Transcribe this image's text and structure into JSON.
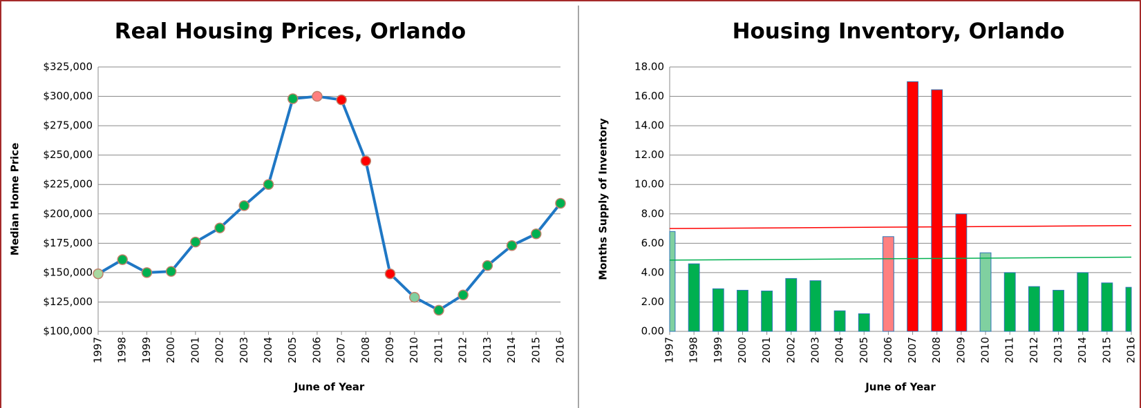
{
  "chart_data": [
    {
      "type": "line",
      "title": "Real Housing Prices, Orlando",
      "x_label": "June of Year",
      "y_label": "Median Home Price",
      "categories": [
        "1997",
        "1998",
        "1999",
        "2000",
        "2001",
        "2002",
        "2003",
        "2004",
        "2005",
        "2006",
        "2007",
        "2008",
        "2009",
        "2010",
        "2011",
        "2012",
        "2013",
        "2014",
        "2015",
        "2016"
      ],
      "values": [
        149000,
        161000,
        150000,
        151000,
        176000,
        188000,
        207000,
        225000,
        298000,
        300000,
        297000,
        245000,
        149000,
        129000,
        118000,
        131000,
        156000,
        173000,
        183000,
        209000
      ],
      "color": "#1f77c4",
      "marker_colors": [
        "#a8d8a0",
        "#00b050",
        "#00b050",
        "#00b050",
        "#00b050",
        "#00b050",
        "#00b050",
        "#00b050",
        "#00b050",
        "#ff8080",
        "#ff0000",
        "#ff0000",
        "#ff0000",
        "#80d0a0",
        "#00b050",
        "#00b050",
        "#00b050",
        "#00b050",
        "#00b050",
        "#00b050"
      ],
      "ylim": [
        100000,
        325000
      ],
      "yticks": [
        {
          "value": 100000,
          "label": "$100,000"
        },
        {
          "value": 125000,
          "label": "$125,000"
        },
        {
          "value": 150000,
          "label": "$150,000"
        },
        {
          "value": 175000,
          "label": "$175,000"
        },
        {
          "value": 200000,
          "label": "$200,000"
        },
        {
          "value": 225000,
          "label": "$225,000"
        },
        {
          "value": 250000,
          "label": "$250,000"
        },
        {
          "value": 275000,
          "label": "$275,000"
        },
        {
          "value": 300000,
          "label": "$300,000"
        },
        {
          "value": 325000,
          "label": "$325,000"
        }
      ],
      "grid": true
    },
    {
      "type": "bar",
      "title": "Housing Inventory, Orlando",
      "x_label": "June of Year",
      "y_label": "Months Supply of Inventory",
      "categories": [
        "1997",
        "1998",
        "1999",
        "2000",
        "2001",
        "2002",
        "2003",
        "2004",
        "2005",
        "2006",
        "2007",
        "2008",
        "2009",
        "2010",
        "2011",
        "2012",
        "2013",
        "2014",
        "2015",
        "2016"
      ],
      "values": [
        6.8,
        4.6,
        2.9,
        2.8,
        2.75,
        3.6,
        3.45,
        1.4,
        1.2,
        6.45,
        17.0,
        16.45,
        8.0,
        5.35,
        4.0,
        3.05,
        2.8,
        4.0,
        3.3,
        3.0
      ],
      "colors": [
        "#80d0a0",
        "#00b050",
        "#00b050",
        "#00b050",
        "#00b050",
        "#00b050",
        "#00b050",
        "#00b050",
        "#00b050",
        "#ff8080",
        "#ff0000",
        "#ff0000",
        "#ff0000",
        "#80d0a0",
        "#00b050",
        "#00b050",
        "#00b050",
        "#00b050",
        "#00b050",
        "#00b050"
      ],
      "reference_lines": [
        {
          "color": "#ff0000",
          "values": [
            7.0,
            7.2
          ]
        },
        {
          "color": "#00b050",
          "values": [
            4.85,
            5.05
          ]
        }
      ],
      "ylim": [
        0,
        18
      ],
      "yticks": [
        {
          "value": 0,
          "label": "0.00"
        },
        {
          "value": 2,
          "label": "2.00"
        },
        {
          "value": 4,
          "label": "4.00"
        },
        {
          "value": 6,
          "label": "6.00"
        },
        {
          "value": 8,
          "label": "8.00"
        },
        {
          "value": 10,
          "label": "10.00"
        },
        {
          "value": 12,
          "label": "12.00"
        },
        {
          "value": 14,
          "label": "14.00"
        },
        {
          "value": 16,
          "label": "16.00"
        },
        {
          "value": 18,
          "label": "18.00"
        }
      ],
      "grid": true
    }
  ]
}
